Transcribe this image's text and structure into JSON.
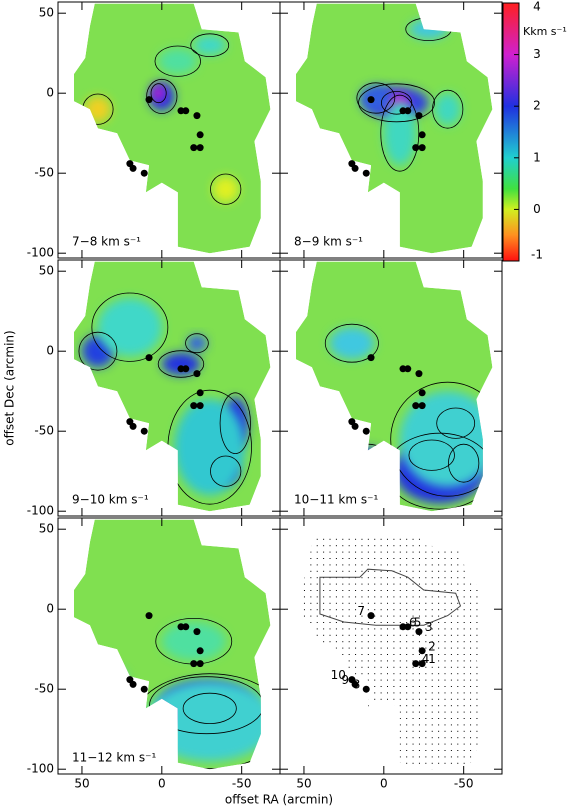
{
  "chart_data": [
    {
      "type": "map",
      "label": "7−8 km s⁻¹",
      "xlim": [
        65,
        -74
      ],
      "ylim": [
        -103,
        57
      ],
      "xticks": [
        50,
        0,
        -50
      ],
      "yticks": [
        50,
        0,
        -50,
        -100
      ],
      "colorbar": {
        "label": "Kkm s⁻¹",
        "lim": [
          -1,
          4
        ],
        "ticks": [
          4,
          3,
          2,
          1,
          0,
          -1
        ]
      }
    },
    {
      "type": "map",
      "label": "8−9 km s⁻¹",
      "xlim": [
        65,
        -74
      ],
      "ylim": [
        -103,
        57
      ],
      "xticks": [
        50,
        0,
        -50
      ],
      "yticks": [
        50,
        0,
        -50,
        -100
      ]
    },
    {
      "type": "map",
      "label": "9−10 km s⁻¹",
      "xlim": [
        65,
        -74
      ],
      "ylim": [
        -103,
        57
      ],
      "xticks": [
        50,
        0,
        -50
      ],
      "yticks": [
        50,
        0,
        -50,
        -100
      ],
      "ylabel": "offset Dec (arcmin)"
    },
    {
      "type": "map",
      "label": "10−11 km s⁻¹",
      "xlim": [
        65,
        -74
      ],
      "ylim": [
        -103,
        57
      ],
      "xticks": [
        50,
        0,
        -50
      ],
      "yticks": [
        50,
        0,
        -50,
        -100
      ]
    },
    {
      "type": "map",
      "label": "11−12 km s⁻¹",
      "xlim": [
        65,
        -74
      ],
      "ylim": [
        -103,
        57
      ],
      "xticks": [
        50,
        0,
        -50
      ],
      "yticks": [
        50,
        0,
        -50,
        -100
      ],
      "xlabel": "offset RA (arcmin)"
    },
    {
      "type": "grid",
      "xlim": [
        65,
        -74
      ],
      "ylim": [
        -103,
        57
      ],
      "xticks": [
        50,
        0,
        -50
      ],
      "yticks": [
        50,
        0,
        -50,
        -100
      ],
      "sources": {
        "labels": [
          "7",
          "6",
          "5",
          "3",
          "2",
          "1",
          "4",
          "10",
          "9",
          "8"
        ],
        "x": [
          8,
          -12,
          -15,
          -22,
          -24,
          -24,
          -20,
          20,
          18,
          11
        ],
        "y": [
          -4,
          -11,
          -11,
          -14,
          -26,
          -34,
          -34,
          -44,
          -47,
          -50
        ]
      }
    }
  ]
}
